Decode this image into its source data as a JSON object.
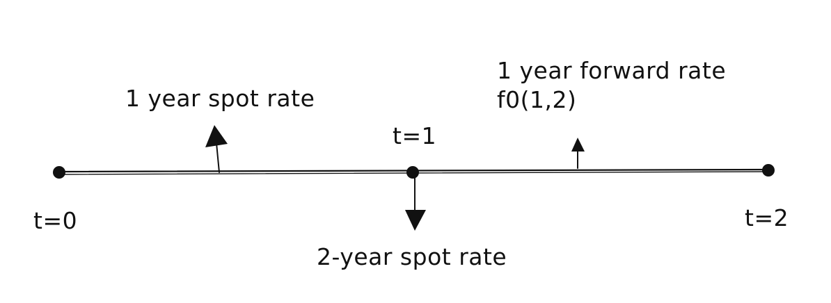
{
  "timeline": {
    "points": [
      {
        "label": "t=0"
      },
      {
        "label": "t=1"
      },
      {
        "label": "t=2"
      }
    ]
  },
  "annotations": {
    "one_year_spot": "1 year spot rate",
    "two_year_spot": "2-year spot rate",
    "forward_rate_line1": "1 year forward rate",
    "forward_rate_line2": "f0(1,2)"
  }
}
